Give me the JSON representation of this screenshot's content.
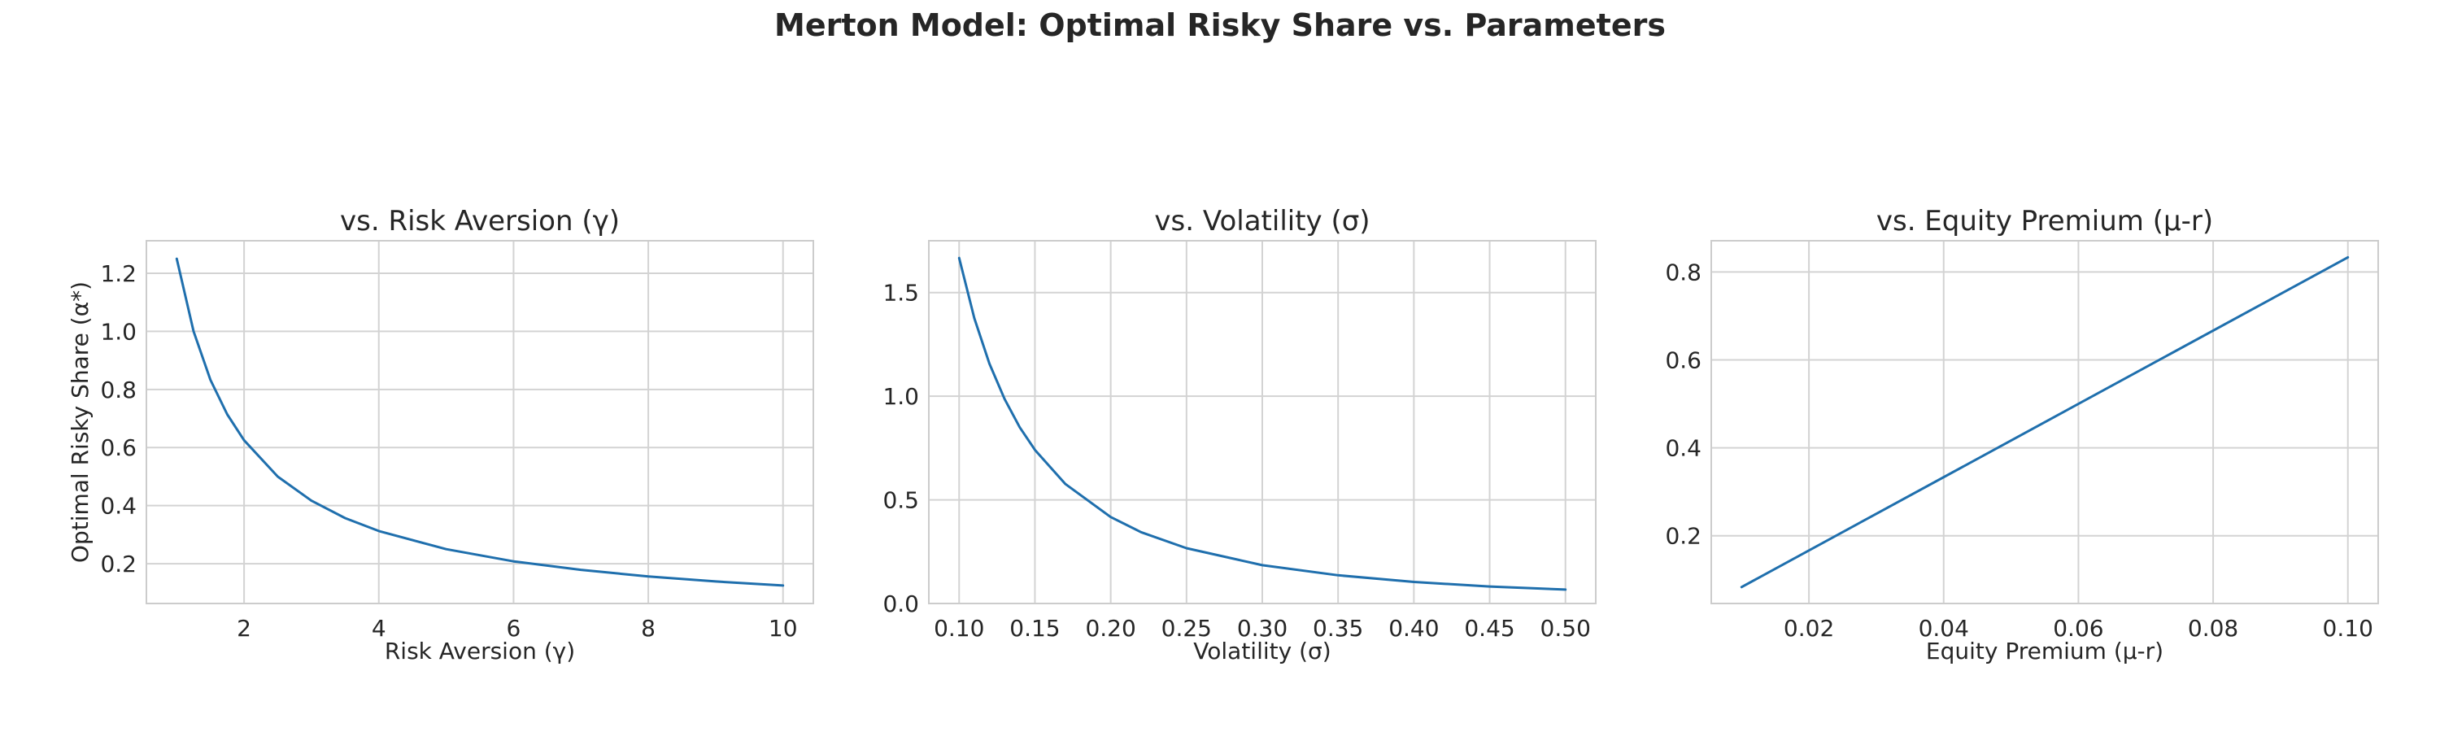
{
  "figure": {
    "title": "Merton Model: Optimal Risky Share vs. Parameters",
    "line_color": "#1f6fad",
    "grid_color": "#d3d3d3",
    "frame_color": "#cccccc"
  },
  "chart_data": [
    {
      "type": "line",
      "title": "vs. Risk Aversion (γ)",
      "xlabel": "Risk Aversion (γ)",
      "ylabel": "Optimal Risky Share (α*)",
      "xlim": [
        0.55,
        10.45
      ],
      "ylim": [
        0.063,
        1.312
      ],
      "xticks": [
        2,
        4,
        6,
        8,
        10
      ],
      "xtick_labels": [
        "2",
        "4",
        "6",
        "8",
        "10"
      ],
      "yticks": [
        0.2,
        0.4,
        0.6,
        0.8,
        1.0,
        1.2
      ],
      "ytick_labels": [
        "0.2",
        "0.4",
        "0.6",
        "0.8",
        "1.0",
        "1.2"
      ],
      "grid": true,
      "series": [
        {
          "x": [
            1.0,
            1.25,
            1.5,
            1.75,
            2.0,
            2.5,
            3.0,
            3.5,
            4.0,
            5.0,
            6.0,
            7.0,
            8.0,
            9.0,
            10.0
          ],
          "values": [
            1.25,
            1.0,
            0.833,
            0.714,
            0.625,
            0.5,
            0.417,
            0.357,
            0.3125,
            0.25,
            0.208,
            0.179,
            0.156,
            0.139,
            0.125
          ]
        }
      ]
    },
    {
      "type": "line",
      "title": "vs. Volatility (σ)",
      "xlabel": "Volatility (σ)",
      "ylabel": "",
      "xlim": [
        0.08,
        0.52
      ],
      "ylim": [
        0.0,
        1.75
      ],
      "xticks": [
        0.1,
        0.15,
        0.2,
        0.25,
        0.3,
        0.35,
        0.4,
        0.45,
        0.5
      ],
      "xtick_labels": [
        "0.10",
        "0.15",
        "0.20",
        "0.25",
        "0.30",
        "0.35",
        "0.40",
        "0.45",
        "0.50"
      ],
      "yticks": [
        0.0,
        0.5,
        1.0,
        1.5
      ],
      "ytick_labels": [
        "0.0",
        "0.5",
        "1.0",
        "1.5"
      ],
      "grid": true,
      "series": [
        {
          "x": [
            0.1,
            0.11,
            0.12,
            0.13,
            0.14,
            0.15,
            0.17,
            0.2,
            0.22,
            0.25,
            0.3,
            0.35,
            0.4,
            0.45,
            0.5
          ],
          "values": [
            1.667,
            1.377,
            1.157,
            0.986,
            0.85,
            0.741,
            0.577,
            0.417,
            0.344,
            0.267,
            0.185,
            0.136,
            0.104,
            0.082,
            0.067
          ]
        }
      ]
    },
    {
      "type": "line",
      "title": "vs. Equity Premium (μ-r)",
      "xlabel": "Equity Premium (μ-r)",
      "ylabel": "",
      "xlim": [
        0.0055,
        0.1045
      ],
      "ylim": [
        0.046,
        0.871
      ],
      "xticks": [
        0.02,
        0.04,
        0.06,
        0.08,
        0.1
      ],
      "xtick_labels": [
        "0.02",
        "0.04",
        "0.06",
        "0.08",
        "0.10"
      ],
      "yticks": [
        0.2,
        0.4,
        0.6,
        0.8
      ],
      "ytick_labels": [
        "0.2",
        "0.4",
        "0.6",
        "0.8"
      ],
      "grid": true,
      "series": [
        {
          "x": [
            0.01,
            0.1
          ],
          "values": [
            0.0833,
            0.8333
          ]
        }
      ]
    }
  ]
}
